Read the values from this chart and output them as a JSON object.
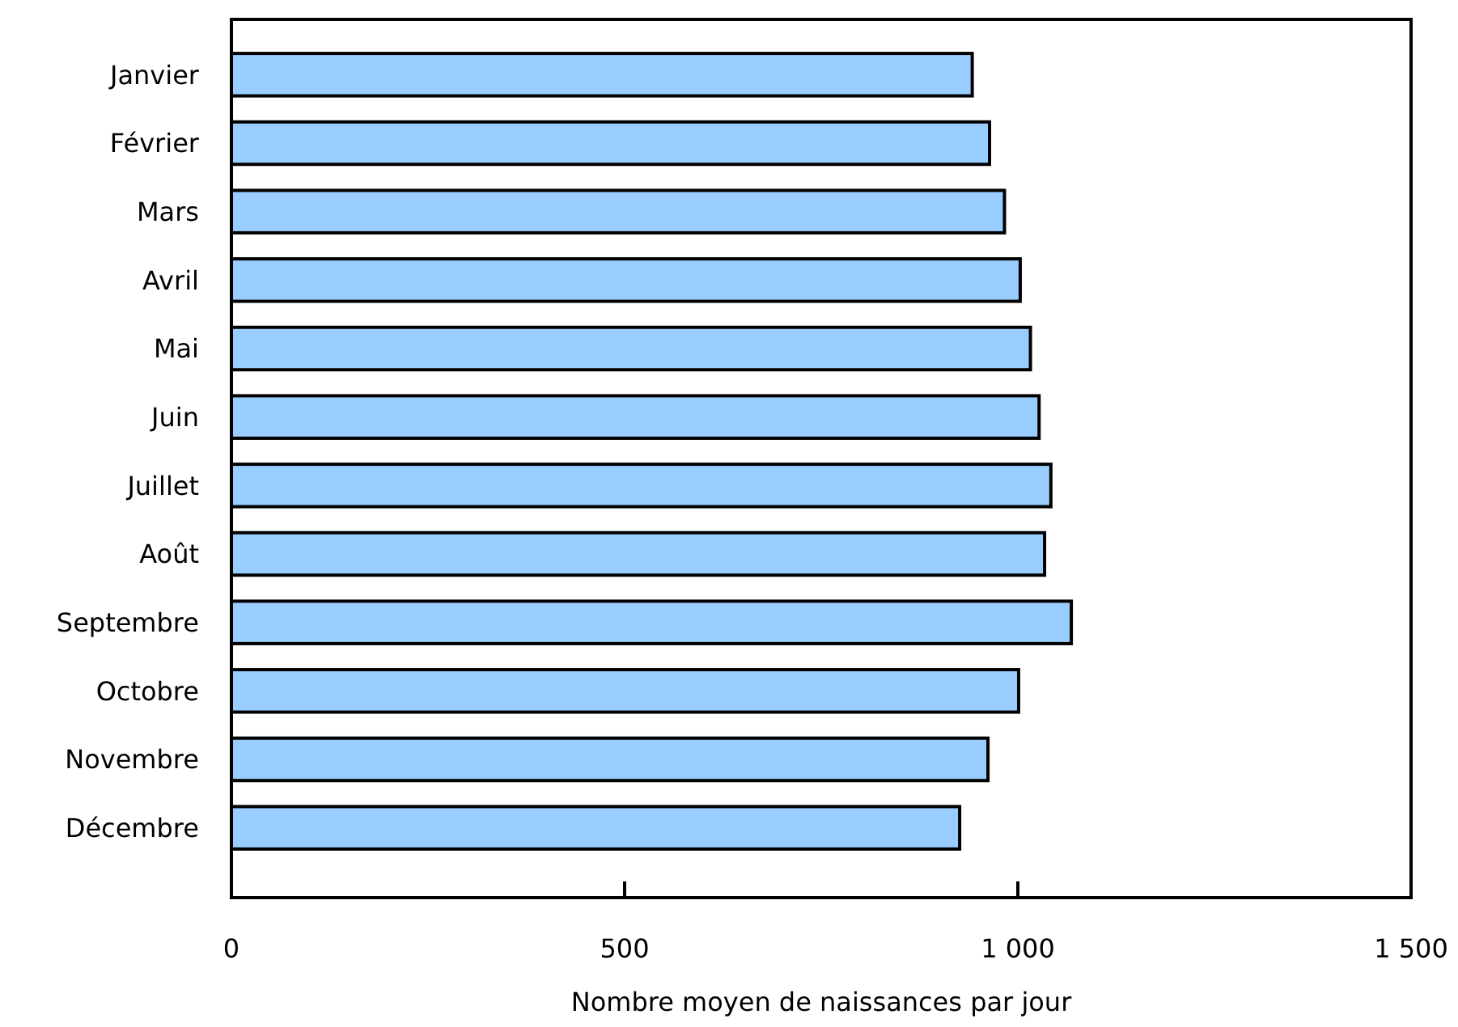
{
  "chart_data": {
    "type": "bar",
    "orientation": "horizontal",
    "xlabel": "Nombre moyen de naissances par jour",
    "categories": [
      "Janvier",
      "Février",
      "Mars",
      "Avril",
      "Mai",
      "Juin",
      "Juillet",
      "Août",
      "Septembre",
      "Octobre",
      "Novembre",
      "Décembre"
    ],
    "values": [
      942,
      964,
      983,
      1003,
      1016,
      1027,
      1042,
      1034,
      1068,
      1001,
      962,
      926
    ],
    "color": "#99ccff",
    "xlim": [
      0,
      1500
    ],
    "xticks": [
      0,
      500,
      {
        "value": 1000,
        "label": "1 000"
      },
      {
        "value": 1500,
        "label": "1 500"
      }
    ],
    "grid": false
  }
}
